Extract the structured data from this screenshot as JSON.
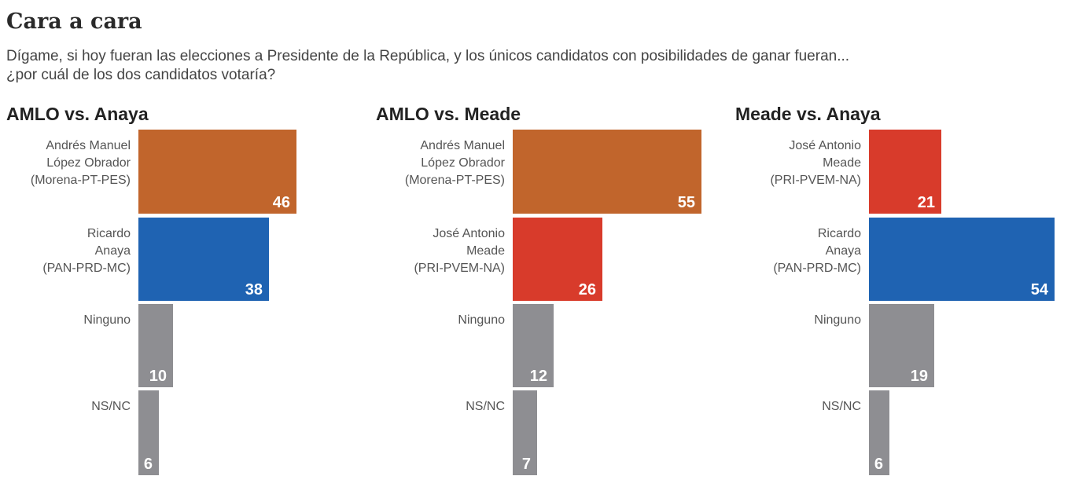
{
  "title": "Cara a cara",
  "subtitle": "Dígame, si hoy fueran las elecciones a Presidente de la República, y los únicos candidatos con posibilidades de ganar fueran...\n¿por cuál de los dos candidatos votaría?",
  "colors": {
    "morena": "#c1652c",
    "pan": "#1f63b2",
    "pri": "#d83b2b",
    "gray": "#8e8e92"
  },
  "chart_data": [
    {
      "type": "bar",
      "orientation": "horizontal",
      "title": "AMLO vs. Anaya",
      "categories": [
        "Andrés Manuel\nLópez Obrador\n(Morena-PT-PES)",
        "Ricardo\nAnaya\n(PAN-PRD-MC)",
        "Ninguno",
        "NS/NC"
      ],
      "values": [
        46,
        38,
        10,
        6
      ],
      "colors": [
        "#c1652c",
        "#1f63b2",
        "#8e8e92",
        "#8e8e92"
      ]
    },
    {
      "type": "bar",
      "orientation": "horizontal",
      "title": "AMLO vs. Meade",
      "categories": [
        "Andrés Manuel\nLópez Obrador\n(Morena-PT-PES)",
        "José Antonio\nMeade\n(PRI-PVEM-NA)",
        "Ninguno",
        "NS/NC"
      ],
      "values": [
        55,
        26,
        12,
        7
      ],
      "colors": [
        "#c1652c",
        "#d83b2b",
        "#8e8e92",
        "#8e8e92"
      ]
    },
    {
      "type": "bar",
      "orientation": "horizontal",
      "title": "Meade vs. Anaya",
      "categories": [
        "José Antonio\nMeade\n(PRI-PVEM-NA)",
        "Ricardo\nAnaya\n(PAN-PRD-MC)",
        "Ninguno",
        "NS/NC"
      ],
      "values": [
        21,
        54,
        19,
        6
      ],
      "colors": [
        "#d83b2b",
        "#1f63b2",
        "#8e8e92",
        "#8e8e92"
      ]
    }
  ]
}
